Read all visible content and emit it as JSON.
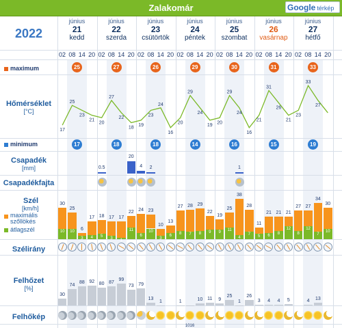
{
  "header": {
    "title": "Zalakomár",
    "map_brand": "Google",
    "map_label": "térkép"
  },
  "year": "2022",
  "days": [
    {
      "month": "június",
      "day": "21",
      "weekday": "kedd",
      "sunday": false
    },
    {
      "month": "június",
      "day": "22",
      "weekday": "szerda",
      "sunday": false
    },
    {
      "month": "június",
      "day": "23",
      "weekday": "csütörtök",
      "sunday": false
    },
    {
      "month": "június",
      "day": "24",
      "weekday": "péntek",
      "sunday": false
    },
    {
      "month": "június",
      "day": "25",
      "weekday": "szombat",
      "sunday": false
    },
    {
      "month": "június",
      "day": "26",
      "weekday": "vasárnap",
      "sunday": true
    },
    {
      "month": "június",
      "day": "27",
      "weekday": "hétfő",
      "sunday": false
    }
  ],
  "hours": [
    "02",
    "08",
    "14",
    "20",
    "02",
    "08",
    "14",
    "20",
    "02",
    "08",
    "14",
    "20",
    "02",
    "08",
    "14",
    "20",
    "02",
    "08",
    "14",
    "20",
    "02",
    "08",
    "14",
    "20",
    "02",
    "08",
    "14",
    "20"
  ],
  "labels": {
    "maximum": "maximum",
    "temperature": "Hőmérséklet",
    "temperature_unit": "[°C]",
    "minimum": "minimum",
    "precip": "Csapadék",
    "precip_unit": "[mm]",
    "precip_type": "Csapadékfajta",
    "wind": "Szél",
    "wind_unit": "[km/h]",
    "wind_max": "maximális szőllökés",
    "wind_avg": "átlagszél",
    "wind_dir": "Szélirány",
    "cloud": "Felhőzet",
    "cloud_unit": "[%]",
    "cloud_img": "Felhőkép"
  },
  "colors": {
    "max": "#e8641b",
    "min": "#2e7dd2",
    "line": "#7bb928",
    "gust": "#f7941d",
    "avg": "#7bb928",
    "precip": "#3a62c9",
    "cloud": "#c7cdd6"
  },
  "max_temps": [
    "25",
    "27",
    "26",
    "29",
    "30",
    "31",
    "33"
  ],
  "min_temps": [
    "17",
    "18",
    "18",
    "14",
    "16",
    "15",
    "19"
  ],
  "temps": [
    17,
    25,
    23,
    21,
    20,
    27,
    22,
    18,
    19,
    23,
    24,
    16,
    20,
    29,
    24,
    19,
    20,
    29,
    24,
    16,
    21,
    31,
    26,
    21,
    23,
    33,
    27,
    22
  ],
  "temp_labels": [
    "17",
    "25",
    "23",
    "21",
    "20",
    "27",
    "22",
    "18",
    "19",
    "23",
    "24",
    "16",
    "20",
    "29",
    "24",
    "19",
    "20",
    "29",
    "24",
    "16",
    "21",
    "31",
    "26",
    "21",
    "23",
    "33",
    "27",
    ""
  ],
  "precip": [
    {
      "index": 4,
      "value": "0.5",
      "amount": 0.5
    },
    {
      "index": 7,
      "value": "20",
      "amount": 20
    },
    {
      "index": 8,
      "value": "4",
      "amount": 4
    },
    {
      "index": 9,
      "value": "2",
      "amount": 2
    },
    {
      "index": 18,
      "value": "1",
      "amount": 1
    }
  ],
  "wind_gust": [
    30,
    25,
    6,
    17,
    18,
    17,
    17,
    22,
    24,
    23,
    10,
    13,
    27,
    28,
    29,
    22,
    19,
    25,
    38,
    28,
    11,
    21,
    21,
    21,
    27,
    27,
    34,
    30
  ],
  "wind_avg": [
    10,
    10,
    3,
    4,
    5,
    3,
    1,
    11,
    6,
    10,
    3,
    6,
    8,
    7,
    8,
    9,
    9,
    11,
    4,
    7,
    5,
    6,
    8,
    12,
    8,
    12,
    7,
    10
  ],
  "wind_gust_labels": [
    "30",
    "25",
    "6",
    "17",
    "18",
    "17",
    "17",
    "22",
    "24",
    "23",
    "10",
    "13",
    "27",
    "28",
    "29",
    "22",
    "19",
    "25",
    "38",
    "28",
    "11",
    "21",
    "21",
    "21",
    "27",
    "27",
    "34",
    "30"
  ],
  "wind_avg_labels": [
    "10",
    "10",
    "3",
    "4",
    "5",
    "3",
    "1",
    "11",
    "6",
    "10",
    "3",
    "6",
    "8",
    "7",
    "8",
    "9",
    "9",
    "11",
    "4",
    "7",
    "5",
    "6",
    "8",
    "12",
    "8",
    "12",
    "7",
    "10"
  ],
  "wind_dir_deg": [
    200,
    200,
    180,
    170,
    160,
    160,
    300,
    310,
    320,
    330,
    330,
    310,
    300,
    320,
    320,
    310,
    330,
    330,
    330,
    320,
    310,
    300,
    320,
    330,
    320,
    330,
    320,
    310
  ],
  "cloud": [
    30,
    74,
    88,
    92,
    80,
    87,
    99,
    73,
    79,
    13,
    1,
    0,
    1,
    1,
    10,
    11,
    9,
    25,
    1,
    26,
    3,
    4,
    4,
    5,
    0,
    4,
    13,
    0
  ],
  "cloud_labels": [
    "30",
    "74",
    "88",
    "92",
    "80",
    "87",
    "99",
    "73",
    "79",
    "13",
    "1",
    "",
    "1",
    "",
    "10",
    "11",
    "9",
    "25",
    "1",
    "26",
    "3",
    "4",
    "4",
    "5",
    "",
    "4",
    "13",
    ""
  ],
  "cloud_icons": [
    "cloudy",
    "cloudy",
    "cloudy",
    "cloudy",
    "cloudy",
    "cloudy",
    "cloudy",
    "cloudy",
    "partly",
    "moon",
    "sun",
    "sun",
    "moon",
    "sun",
    "sun",
    "moon",
    "moon",
    "sun",
    "sun",
    "moon",
    "moon",
    "sun",
    "sun",
    "moon",
    "moon",
    "sun",
    "sun",
    "moon"
  ],
  "footer_value": "1016"
}
